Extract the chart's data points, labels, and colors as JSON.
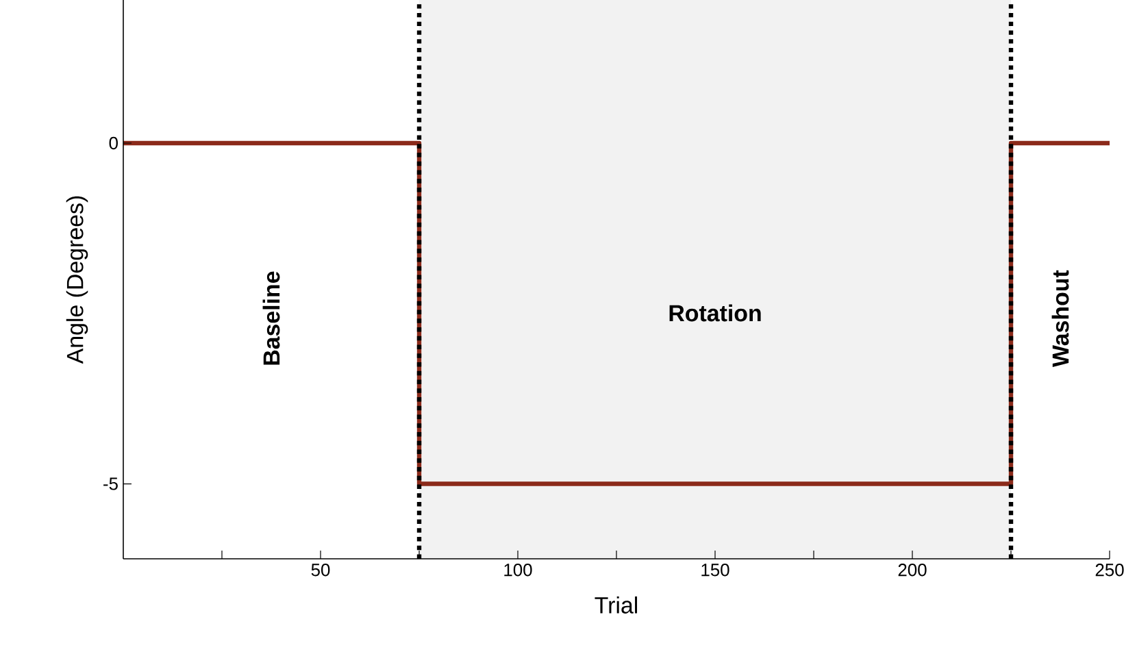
{
  "chart_data": {
    "type": "line",
    "xlabel": "Trial",
    "ylabel": "Angle (Degrees)",
    "series": [
      {
        "color": "#8b2a1a",
        "x": [
          0,
          75,
          75,
          225,
          225,
          250
        ],
        "values": [
          0,
          0,
          -5,
          -5,
          0,
          0
        ]
      }
    ],
    "xlim": [
      0,
      250
    ],
    "ylim": [
      -6.1,
      2.1
    ],
    "xticks": [
      {
        "value": 25,
        "label": null
      },
      50,
      {
        "value": 75,
        "label": null
      },
      100,
      {
        "value": 125,
        "label": null
      },
      150,
      {
        "value": 175,
        "label": null
      },
      200,
      {
        "value": 225,
        "label": null
      },
      250
    ],
    "yticks": [
      -5,
      0
    ],
    "bands": [
      {
        "axis": "x",
        "from": 75,
        "to": 225,
        "label": "Rotation",
        "color": "#f2f2f2"
      }
    ],
    "ref_lines": [
      {
        "axis": "x",
        "value": 75,
        "color": "#000000",
        "line_style": "dotted"
      },
      {
        "axis": "x",
        "value": 225,
        "color": "#000000",
        "line_style": "dotted"
      }
    ],
    "annotations": [
      "Baseline",
      "Washout"
    ],
    "line_style": "solid",
    "grid": false
  }
}
